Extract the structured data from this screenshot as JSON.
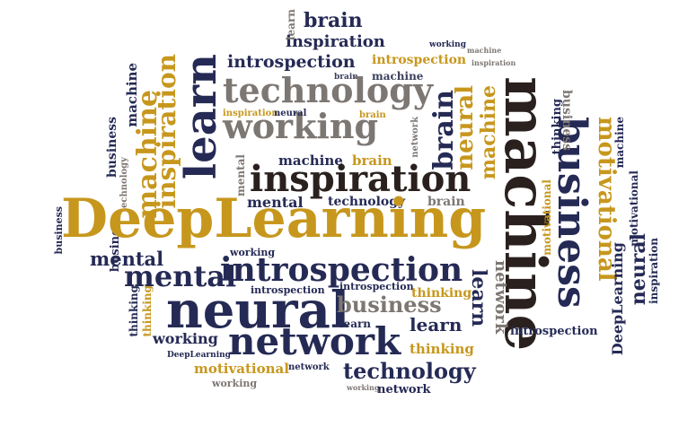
{
  "colors": {
    "navy": "#252a55",
    "gold": "#c7971d",
    "gray": "#7d7773",
    "dark": "#2a211f",
    "background": "#ffffff"
  },
  "words": {
    "deeplearning": "DeepLearning",
    "machine": "machine",
    "business": "business",
    "learn": "learn",
    "neural": "neural",
    "network": "network",
    "introspection": "introspection",
    "inspiration": "inspiration",
    "technology": "technology",
    "working": "working",
    "mental": "mental",
    "brain": "brain",
    "motivational": "motivational",
    "thinking": "thinking"
  }
}
